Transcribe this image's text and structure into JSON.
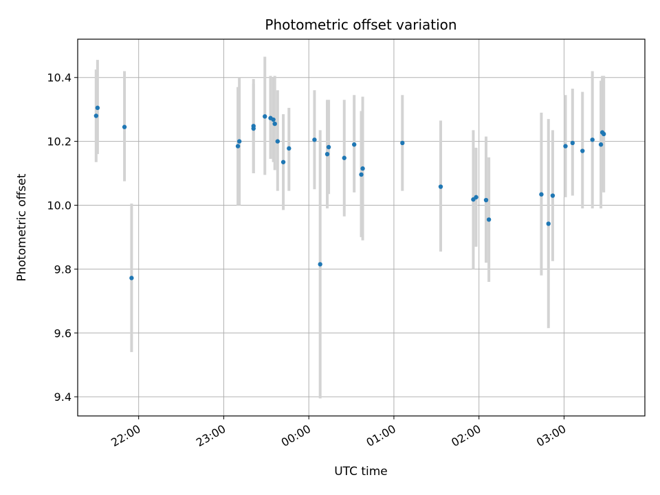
{
  "chart_data": {
    "type": "scatter",
    "title": "Photometric offset variation",
    "xlabel": "UTC time",
    "ylabel": "Photometric offset",
    "ylim": [
      9.34,
      10.52
    ],
    "xlim": [
      "21:17",
      "03:57"
    ],
    "grid": true,
    "yticks": [
      9.4,
      9.6,
      9.8,
      10.0,
      10.2,
      10.4
    ],
    "ytick_labels": [
      "9.4",
      "9.6",
      "9.8",
      "10.0",
      "10.2",
      "10.4"
    ],
    "xticks": [
      "22:00",
      "23:00",
      "00:00",
      "01:00",
      "02:00",
      "03:00"
    ],
    "colors": {
      "points": "#1f77b4",
      "errorbars": "#d3d3d3",
      "grid": "#b0b0b0"
    },
    "series": [
      {
        "points": [
          {
            "x": "21:30",
            "y": 10.28,
            "lo": 10.135,
            "hi": 10.425
          },
          {
            "x": "21:31",
            "y": 10.305,
            "lo": 10.16,
            "hi": 10.455
          },
          {
            "x": "21:50",
            "y": 10.245,
            "lo": 10.075,
            "hi": 10.42
          },
          {
            "x": "21:55",
            "y": 9.772,
            "lo": 9.54,
            "hi": 10.005
          },
          {
            "x": "23:10",
            "y": 10.185,
            "lo": 10.0,
            "hi": 10.37
          },
          {
            "x": "23:11",
            "y": 10.2,
            "lo": 10.0,
            "hi": 10.4
          },
          {
            "x": "23:21",
            "y": 10.24,
            "lo": 10.1,
            "hi": 10.38
          },
          {
            "x": "23:21",
            "y": 10.248,
            "lo": 10.1,
            "hi": 10.395
          },
          {
            "x": "23:29",
            "y": 10.278,
            "lo": 10.095,
            "hi": 10.465
          },
          {
            "x": "23:33",
            "y": 10.273,
            "lo": 10.145,
            "hi": 10.405
          },
          {
            "x": "23:35",
            "y": 10.268,
            "lo": 10.135,
            "hi": 10.4
          },
          {
            "x": "23:36",
            "y": 10.255,
            "lo": 10.11,
            "hi": 10.405
          },
          {
            "x": "23:38",
            "y": 10.2,
            "lo": 10.045,
            "hi": 10.36
          },
          {
            "x": "23:42",
            "y": 10.135,
            "lo": 9.985,
            "hi": 10.285
          },
          {
            "x": "23:46",
            "y": 10.178,
            "lo": 10.045,
            "hi": 10.305
          },
          {
            "x": "00:04",
            "y": 10.205,
            "lo": 10.05,
            "hi": 10.36
          },
          {
            "x": "00:08",
            "y": 9.815,
            "lo": 9.395,
            "hi": 10.235
          },
          {
            "x": "00:13",
            "y": 10.16,
            "lo": 9.99,
            "hi": 10.33
          },
          {
            "x": "00:14",
            "y": 10.182,
            "lo": 10.035,
            "hi": 10.33
          },
          {
            "x": "00:25",
            "y": 10.148,
            "lo": 9.965,
            "hi": 10.33
          },
          {
            "x": "00:32",
            "y": 10.19,
            "lo": 10.04,
            "hi": 10.345
          },
          {
            "x": "00:37",
            "y": 10.096,
            "lo": 9.9,
            "hi": 10.295
          },
          {
            "x": "00:38",
            "y": 10.115,
            "lo": 9.89,
            "hi": 10.34
          },
          {
            "x": "01:06",
            "y": 10.195,
            "lo": 10.045,
            "hi": 10.345
          },
          {
            "x": "01:33",
            "y": 10.058,
            "lo": 9.855,
            "hi": 10.265
          },
          {
            "x": "01:56",
            "y": 10.018,
            "lo": 9.8,
            "hi": 10.235
          },
          {
            "x": "01:58",
            "y": 10.025,
            "lo": 9.87,
            "hi": 10.18
          },
          {
            "x": "02:05",
            "y": 10.016,
            "lo": 9.82,
            "hi": 10.215
          },
          {
            "x": "02:07",
            "y": 9.955,
            "lo": 9.76,
            "hi": 10.15
          },
          {
            "x": "02:44",
            "y": 10.034,
            "lo": 9.78,
            "hi": 10.29
          },
          {
            "x": "02:49",
            "y": 9.942,
            "lo": 9.615,
            "hi": 10.27
          },
          {
            "x": "02:52",
            "y": 10.03,
            "lo": 9.825,
            "hi": 10.235
          },
          {
            "x": "03:01",
            "y": 10.185,
            "lo": 10.025,
            "hi": 10.345
          },
          {
            "x": "03:06",
            "y": 10.195,
            "lo": 10.03,
            "hi": 10.365
          },
          {
            "x": "03:13",
            "y": 10.17,
            "lo": 9.99,
            "hi": 10.355
          },
          {
            "x": "03:20",
            "y": 10.205,
            "lo": 9.99,
            "hi": 10.42
          },
          {
            "x": "03:26",
            "y": 10.19,
            "lo": 9.99,
            "hi": 10.39
          },
          {
            "x": "03:27",
            "y": 10.228,
            "lo": 10.045,
            "hi": 10.405
          },
          {
            "x": "03:28",
            "y": 10.223,
            "lo": 10.04,
            "hi": 10.405
          }
        ]
      }
    ]
  }
}
